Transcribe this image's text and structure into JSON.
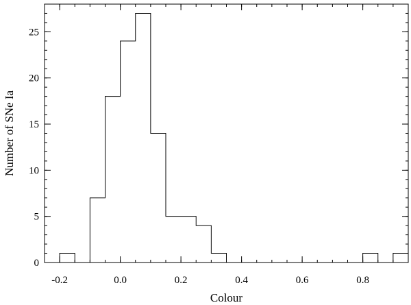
{
  "chart_data": {
    "type": "bar",
    "style": "step-histogram",
    "xlabel": "Colour",
    "ylabel": "Number of SNe Ia",
    "xlim": [
      -0.25,
      0.95
    ],
    "ylim": [
      0,
      28
    ],
    "bin_width": 0.05,
    "bins": [
      {
        "start": -0.25,
        "end": -0.2,
        "count": 0
      },
      {
        "start": -0.2,
        "end": -0.15,
        "count": 1
      },
      {
        "start": -0.15,
        "end": -0.1,
        "count": 0
      },
      {
        "start": -0.1,
        "end": -0.05,
        "count": 7
      },
      {
        "start": -0.05,
        "end": 0.0,
        "count": 18
      },
      {
        "start": 0.0,
        "end": 0.05,
        "count": 24
      },
      {
        "start": 0.05,
        "end": 0.1,
        "count": 27
      },
      {
        "start": 0.1,
        "end": 0.15,
        "count": 14
      },
      {
        "start": 0.15,
        "end": 0.2,
        "count": 5
      },
      {
        "start": 0.2,
        "end": 0.25,
        "count": 5
      },
      {
        "start": 0.25,
        "end": 0.3,
        "count": 4
      },
      {
        "start": 0.3,
        "end": 0.35,
        "count": 1
      },
      {
        "start": 0.35,
        "end": 0.4,
        "count": 0
      },
      {
        "start": 0.4,
        "end": 0.45,
        "count": 0
      },
      {
        "start": 0.45,
        "end": 0.5,
        "count": 0
      },
      {
        "start": 0.5,
        "end": 0.55,
        "count": 0
      },
      {
        "start": 0.55,
        "end": 0.6,
        "count": 0
      },
      {
        "start": 0.6,
        "end": 0.65,
        "count": 0
      },
      {
        "start": 0.65,
        "end": 0.7,
        "count": 0
      },
      {
        "start": 0.7,
        "end": 0.75,
        "count": 0
      },
      {
        "start": 0.75,
        "end": 0.8,
        "count": 0
      },
      {
        "start": 0.8,
        "end": 0.85,
        "count": 1
      },
      {
        "start": 0.85,
        "end": 0.9,
        "count": 0
      },
      {
        "start": 0.9,
        "end": 0.95,
        "count": 1
      }
    ],
    "x_ticks": [
      {
        "value": -0.2,
        "label": "-0.2"
      },
      {
        "value": 0.0,
        "label": "0.0"
      },
      {
        "value": 0.2,
        "label": "0.2"
      },
      {
        "value": 0.4,
        "label": "0.4"
      },
      {
        "value": 0.6,
        "label": "0.6"
      },
      {
        "value": 0.8,
        "label": "0.8"
      }
    ],
    "x_minor_step": 0.05,
    "y_ticks": [
      {
        "value": 0,
        "label": "0"
      },
      {
        "value": 5,
        "label": "5"
      },
      {
        "value": 10,
        "label": "10"
      },
      {
        "value": 15,
        "label": "15"
      },
      {
        "value": 20,
        "label": "20"
      },
      {
        "value": 25,
        "label": "25"
      }
    ],
    "y_minor_step": 1,
    "grid": false,
    "colors": {
      "line": "#000000",
      "background": "#ffffff"
    }
  }
}
